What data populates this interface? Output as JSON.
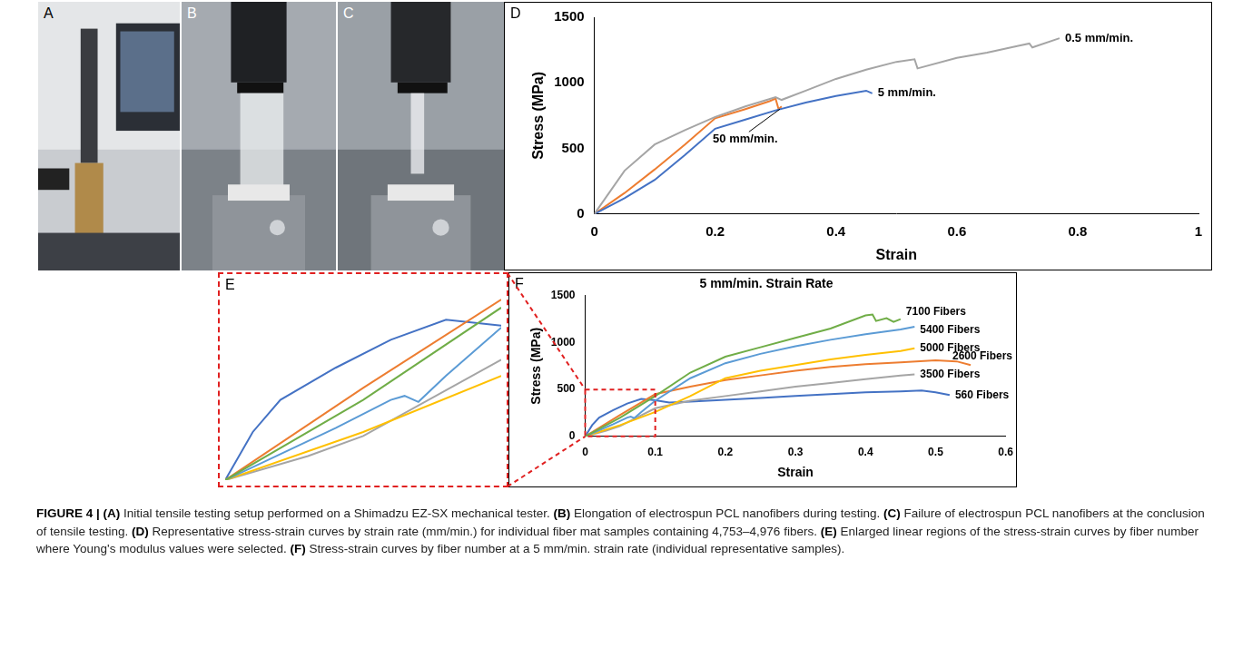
{
  "photos": [
    {
      "letter": "A"
    },
    {
      "letter": "B"
    },
    {
      "letter": "C"
    }
  ],
  "chart_data": [
    {
      "letter": "D",
      "type": "line",
      "x_label": "Strain",
      "y_label": "Stress (MPa)",
      "xlim": [
        0,
        1
      ],
      "xticks": [
        0,
        0.2,
        0.4,
        0.6,
        0.8,
        1
      ],
      "ylim": [
        0,
        1500
      ],
      "yticks": [
        0,
        500,
        1000,
        1500
      ],
      "grid": false,
      "series": [
        {
          "name": "0.5 mm/min.",
          "color": "#a5a5a5",
          "x": [
            0,
            0.05,
            0.1,
            0.15,
            0.2,
            0.25,
            0.3,
            0.31,
            0.35,
            0.4,
            0.45,
            0.5,
            0.53,
            0.535,
            0.6,
            0.65,
            0.7,
            0.72,
            0.725,
            0.77
          ],
          "values": [
            0,
            330,
            530,
            640,
            740,
            820,
            890,
            870,
            940,
            1030,
            1100,
            1160,
            1180,
            1110,
            1190,
            1230,
            1280,
            1300,
            1270,
            1340
          ]
        },
        {
          "name": "5 mm/min.",
          "color": "#4472c4",
          "x": [
            0,
            0.05,
            0.1,
            0.15,
            0.2,
            0.25,
            0.3,
            0.35,
            0.4,
            0.45,
            0.46
          ],
          "values": [
            0,
            120,
            260,
            450,
            650,
            720,
            790,
            850,
            900,
            940,
            920
          ]
        },
        {
          "name": "50 mm/min.",
          "color": "#ed7d31",
          "x": [
            0,
            0.05,
            0.1,
            0.15,
            0.2,
            0.25,
            0.29,
            0.3,
            0.305,
            0.31
          ],
          "values": [
            0,
            160,
            340,
            530,
            730,
            800,
            860,
            880,
            800,
            820
          ]
        }
      ]
    },
    {
      "letter": "E",
      "type": "line",
      "xlim": [
        0,
        0.1
      ],
      "ylim": [
        0,
        500
      ],
      "tick_labels": false,
      "grid": false,
      "series": [
        {
          "color": "#70ad47",
          "x": [
            0,
            0.05,
            0.1
          ],
          "values": [
            0,
            200,
            430
          ]
        },
        {
          "color": "#5b9bd5",
          "x": [
            0,
            0.04,
            0.06,
            0.065,
            0.07,
            0.08,
            0.1
          ],
          "values": [
            0,
            130,
            200,
            210,
            195,
            260,
            380
          ]
        },
        {
          "color": "#ffc000",
          "x": [
            0,
            0.05,
            0.1
          ],
          "values": [
            0,
            120,
            260
          ]
        },
        {
          "color": "#ed7d31",
          "x": [
            0,
            0.05,
            0.1
          ],
          "values": [
            0,
            230,
            450
          ]
        },
        {
          "color": "#a5a5a5",
          "x": [
            0,
            0.03,
            0.05,
            0.1
          ],
          "values": [
            0,
            60,
            110,
            300
          ]
        },
        {
          "color": "#4472c4",
          "x": [
            0,
            0.01,
            0.02,
            0.04,
            0.06,
            0.08,
            0.1
          ],
          "values": [
            0,
            120,
            200,
            280,
            350,
            400,
            385
          ]
        }
      ]
    },
    {
      "letter": "F",
      "type": "line",
      "title": "5 mm/min. Strain Rate",
      "x_label": "Strain",
      "y_label": "Stress (MPa)",
      "xlim": [
        0,
        0.6
      ],
      "xticks": [
        0,
        0.1,
        0.2,
        0.3,
        0.4,
        0.5,
        0.6
      ],
      "ylim": [
        0,
        1500
      ],
      "yticks": [
        0,
        500,
        1000,
        1500
      ],
      "grid": false,
      "series": [
        {
          "name": "7100 Fibers",
          "color": "#70ad47",
          "x": [
            0,
            0.05,
            0.1,
            0.15,
            0.2,
            0.25,
            0.3,
            0.35,
            0.4,
            0.41,
            0.415,
            0.43,
            0.44,
            0.45
          ],
          "values": [
            0,
            200,
            430,
            680,
            850,
            950,
            1050,
            1150,
            1290,
            1300,
            1230,
            1260,
            1220,
            1250
          ]
        },
        {
          "name": "5400 Fibers",
          "color": "#5b9bd5",
          "x": [
            0,
            0.04,
            0.06,
            0.065,
            0.07,
            0.08,
            0.1,
            0.15,
            0.2,
            0.25,
            0.3,
            0.35,
            0.4,
            0.45,
            0.47
          ],
          "values": [
            0,
            130,
            200,
            210,
            195,
            260,
            380,
            620,
            780,
            880,
            960,
            1030,
            1090,
            1140,
            1170
          ]
        },
        {
          "name": "5000 Fibers",
          "color": "#ffc000",
          "x": [
            0,
            0.05,
            0.1,
            0.15,
            0.2,
            0.25,
            0.3,
            0.35,
            0.4,
            0.45,
            0.47
          ],
          "values": [
            0,
            120,
            260,
            430,
            620,
            700,
            760,
            820,
            870,
            910,
            940
          ]
        },
        {
          "name": "2600 Fibers",
          "color": "#ed7d31",
          "x": [
            0,
            0.05,
            0.1,
            0.15,
            0.2,
            0.25,
            0.3,
            0.35,
            0.4,
            0.45,
            0.5,
            0.53,
            0.55
          ],
          "values": [
            0,
            230,
            450,
            530,
            600,
            650,
            700,
            740,
            770,
            790,
            810,
            800,
            760
          ]
        },
        {
          "name": "3500 Fibers",
          "color": "#a5a5a5",
          "x": [
            0,
            0.03,
            0.05,
            0.1,
            0.15,
            0.2,
            0.25,
            0.3,
            0.35,
            0.4,
            0.45,
            0.47
          ],
          "values": [
            0,
            60,
            110,
            300,
            380,
            430,
            480,
            530,
            570,
            610,
            650,
            660
          ]
        },
        {
          "name": "560 Fibers",
          "color": "#4472c4",
          "x": [
            0,
            0.01,
            0.02,
            0.04,
            0.06,
            0.08,
            0.1,
            0.12,
            0.15,
            0.2,
            0.25,
            0.3,
            0.35,
            0.4,
            0.45,
            0.48,
            0.5,
            0.52
          ],
          "values": [
            0,
            120,
            200,
            280,
            350,
            400,
            385,
            360,
            370,
            390,
            410,
            430,
            450,
            470,
            480,
            490,
            470,
            440
          ]
        }
      ]
    }
  ],
  "caption": {
    "label": "FIGURE 4 |",
    "items": [
      {
        "letter": "(A)",
        "text": "Initial tensile testing setup performed on a Shimadzu EZ-SX mechanical tester."
      },
      {
        "letter": "(B)",
        "text": "Elongation of electrospun PCL nanofibers during testing."
      },
      {
        "letter": "(C)",
        "text": "Failure of electrospun PCL nanofibers at the conclusion of tensile testing."
      },
      {
        "letter": "(D)",
        "text": "Representative stress-strain curves by strain rate (mm/min.) for individual fiber mat samples containing 4,753–4,976 fibers."
      },
      {
        "letter": "(E)",
        "text": "Enlarged linear regions of the stress-strain curves by fiber number where Young's modulus values were selected."
      },
      {
        "letter": "(F)",
        "text": "Stress-strain curves by fiber number at a 5 mm/min. strain rate (individual representative samples)."
      }
    ]
  }
}
